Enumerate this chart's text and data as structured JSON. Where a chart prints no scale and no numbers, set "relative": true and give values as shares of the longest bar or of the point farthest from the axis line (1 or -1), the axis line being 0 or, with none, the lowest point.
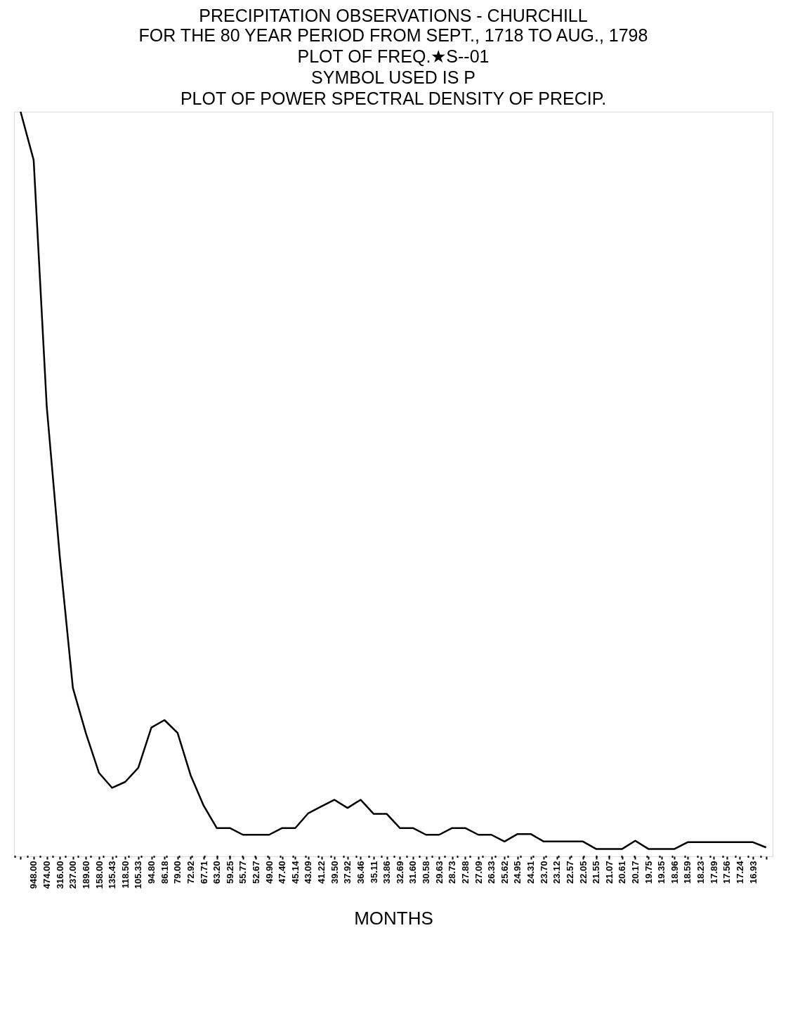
{
  "chart_data": {
    "type": "line",
    "title": "PRECIPITATION OBSERVATIONS - CHURCHILL",
    "subtitle": "FOR THE 80 YEAR PERIOD FROM SEPT., 1718 TO AUG., 1798\nPLOT OF FREQ.★S--01\nSYMBOL USED IS P\nPLOT OF POWER SPECTRAL DENSITY OF PRECIP.",
    "xlabel": "MONTHS",
    "relative": true,
    "color": "#000000",
    "categories": [
      null,
      "948.00",
      "474.00",
      "316.00",
      "237.00",
      "189.60",
      "158.00",
      "135.43",
      "118.50",
      "105.33",
      "94.80",
      "86.18",
      "79.00",
      "72.92",
      "67.71",
      "63.20",
      "59.25",
      "55.77",
      "52.67",
      "49.90",
      "47.40",
      "45.14",
      "43.09",
      "41.22",
      "39.50",
      "37.92",
      "36.46",
      "35.11",
      "33.86",
      "32.69",
      "31.60",
      "30.58",
      "29.63",
      "28.73",
      "27.88",
      "27.09",
      "26.33",
      "25.62",
      "24.95",
      "24.31",
      "23.70",
      "23.12",
      "22.57",
      "22.05",
      "21.55",
      "21.07",
      "20.61",
      "20.17",
      "19.75",
      "19.35",
      "18.96",
      "18.59",
      "18.23",
      "17.89",
      "17.56",
      "17.24",
      "16.93",
      null
    ],
    "values": [
      1,
      0.935,
      0.604,
      0.402,
      0.226,
      0.165,
      0.112,
      0.092,
      0.1,
      0.119,
      0.173,
      0.183,
      0.166,
      0.109,
      0.068,
      0.038,
      0.038,
      0.029,
      0.029,
      0.029,
      0.038,
      0.038,
      0.058,
      0.067,
      0.076,
      0.065,
      0.076,
      0.057,
      0.057,
      0.038,
      0.038,
      0.029,
      0.029,
      0.038,
      0.038,
      0.029,
      0.029,
      0.02,
      0.03,
      0.03,
      0.02,
      0.02,
      0.02,
      0.02,
      0.01,
      0.01,
      0.01,
      0.021,
      0.01,
      0.01,
      0.01,
      0.019,
      0.019,
      0.019,
      0.019,
      0.019,
      0.019,
      0.012
    ]
  }
}
